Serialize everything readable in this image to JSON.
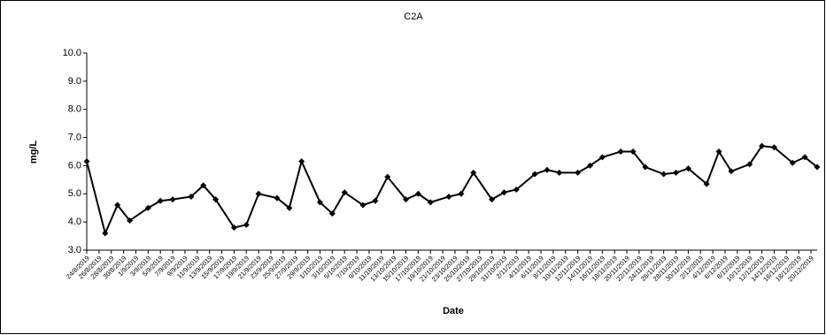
{
  "chart_data": {
    "type": "line",
    "title": "C2A",
    "xlabel": "Date",
    "ylabel": "mg/L",
    "x": [
      "2019-08-24",
      "2019-08-27",
      "2019-08-29",
      "2019-08-31",
      "2019-09-03",
      "2019-09-05",
      "2019-09-07",
      "2019-09-10",
      "2019-09-12",
      "2019-09-14",
      "2019-09-17",
      "2019-09-19",
      "2019-09-21",
      "2019-09-24",
      "2019-09-26",
      "2019-09-28",
      "2019-10-01",
      "2019-10-03",
      "2019-10-05",
      "2019-10-08",
      "2019-10-10",
      "2019-10-12",
      "2019-10-15",
      "2019-10-17",
      "2019-10-19",
      "2019-10-22",
      "2019-10-24",
      "2019-10-26",
      "2019-10-29",
      "2019-10-31",
      "2019-11-02",
      "2019-11-05",
      "2019-11-07",
      "2019-11-09",
      "2019-11-12",
      "2019-11-14",
      "2019-11-16",
      "2019-11-19",
      "2019-11-21",
      "2019-11-23",
      "2019-11-26",
      "2019-11-28",
      "2019-11-30",
      "2019-12-03",
      "2019-12-05",
      "2019-12-07",
      "2019-12-10",
      "2019-12-12",
      "2019-12-14",
      "2019-12-17",
      "2019-12-19",
      "2019-12-21"
    ],
    "series": [
      {
        "name": "C2A",
        "color": "#000000",
        "values": [
          6.15,
          3.6,
          4.6,
          4.05,
          4.5,
          4.75,
          4.8,
          4.9,
          5.3,
          4.8,
          3.8,
          3.9,
          5.0,
          4.85,
          4.5,
          6.15,
          4.7,
          4.3,
          5.05,
          4.6,
          4.75,
          5.6,
          4.8,
          5.0,
          4.7,
          4.9,
          5.0,
          5.75,
          4.8,
          5.05,
          5.15,
          5.7,
          5.85,
          5.75,
          5.75,
          6.0,
          6.3,
          6.5,
          6.5,
          5.95,
          5.7,
          5.75,
          5.9,
          5.35,
          6.5,
          5.8,
          6.05,
          6.7,
          6.65,
          6.1,
          6.3,
          5.95
        ]
      }
    ],
    "xlim": [
      "2019-08-24",
      "2019-12-21"
    ],
    "xticks": [
      {
        "value": "2019-08-24",
        "label": "24/8/2019"
      },
      {
        "value": "2019-08-26",
        "label": "26/8/2019"
      },
      {
        "value": "2019-08-28",
        "label": "28/8/2019"
      },
      {
        "value": "2019-08-30",
        "label": "30/8/2019"
      },
      {
        "value": "2019-09-01",
        "label": "1/9/2019"
      },
      {
        "value": "2019-09-03",
        "label": "3/9/2019"
      },
      {
        "value": "2019-09-05",
        "label": "5/9/2019"
      },
      {
        "value": "2019-09-07",
        "label": "7/9/2019"
      },
      {
        "value": "2019-09-09",
        "label": "9/9/2019"
      },
      {
        "value": "2019-09-11",
        "label": "11/9/2019"
      },
      {
        "value": "2019-09-13",
        "label": "13/9/2019"
      },
      {
        "value": "2019-09-15",
        "label": "15/9/2019"
      },
      {
        "value": "2019-09-17",
        "label": "17/9/2019"
      },
      {
        "value": "2019-09-19",
        "label": "19/9/2019"
      },
      {
        "value": "2019-09-21",
        "label": "21/9/2019"
      },
      {
        "value": "2019-09-23",
        "label": "23/9/2019"
      },
      {
        "value": "2019-09-25",
        "label": "25/9/2019"
      },
      {
        "value": "2019-09-27",
        "label": "27/9/2019"
      },
      {
        "value": "2019-09-29",
        "label": "29/9/2019"
      },
      {
        "value": "2019-10-01",
        "label": "1/10/2019"
      },
      {
        "value": "2019-10-03",
        "label": "3/10/2019"
      },
      {
        "value": "2019-10-05",
        "label": "5/10/2019"
      },
      {
        "value": "2019-10-07",
        "label": "7/10/2019"
      },
      {
        "value": "2019-10-09",
        "label": "9/10/2019"
      },
      {
        "value": "2019-10-11",
        "label": "11/10/2019"
      },
      {
        "value": "2019-10-13",
        "label": "13/10/2019"
      },
      {
        "value": "2019-10-15",
        "label": "15/10/2019"
      },
      {
        "value": "2019-10-17",
        "label": "17/10/2019"
      },
      {
        "value": "2019-10-19",
        "label": "19/10/2019"
      },
      {
        "value": "2019-10-21",
        "label": "21/10/2019"
      },
      {
        "value": "2019-10-23",
        "label": "23/10/2019"
      },
      {
        "value": "2019-10-25",
        "label": "25/10/2019"
      },
      {
        "value": "2019-10-27",
        "label": "27/10/2019"
      },
      {
        "value": "2019-10-29",
        "label": "29/10/2019"
      },
      {
        "value": "2019-10-31",
        "label": "31/10/2019"
      },
      {
        "value": "2019-11-02",
        "label": "2/11/2019"
      },
      {
        "value": "2019-11-04",
        "label": "4/11/2019"
      },
      {
        "value": "2019-11-06",
        "label": "6/11/2019"
      },
      {
        "value": "2019-11-08",
        "label": "8/11/2019"
      },
      {
        "value": "2019-11-10",
        "label": "10/11/2019"
      },
      {
        "value": "2019-11-12",
        "label": "12/11/2019"
      },
      {
        "value": "2019-11-14",
        "label": "14/11/2019"
      },
      {
        "value": "2019-11-16",
        "label": "16/11/2019"
      },
      {
        "value": "2019-11-18",
        "label": "18/11/2019"
      },
      {
        "value": "2019-11-20",
        "label": "20/11/2019"
      },
      {
        "value": "2019-11-22",
        "label": "22/11/2019"
      },
      {
        "value": "2019-11-24",
        "label": "24/11/2019"
      },
      {
        "value": "2019-11-26",
        "label": "26/11/2019"
      },
      {
        "value": "2019-11-28",
        "label": "28/11/2019"
      },
      {
        "value": "2019-11-30",
        "label": "30/11/2019"
      },
      {
        "value": "2019-12-02",
        "label": "2/12/2019"
      },
      {
        "value": "2019-12-04",
        "label": "4/12/2019"
      },
      {
        "value": "2019-12-06",
        "label": "6/12/2019"
      },
      {
        "value": "2019-12-08",
        "label": "8/12/2019"
      },
      {
        "value": "2019-12-10",
        "label": "10/12/2019"
      },
      {
        "value": "2019-12-12",
        "label": "12/12/2019"
      },
      {
        "value": "2019-12-14",
        "label": "14/12/2019"
      },
      {
        "value": "2019-12-16",
        "label": "16/12/2019"
      },
      {
        "value": "2019-12-18",
        "label": "18/12/2019"
      },
      {
        "value": "2019-12-20",
        "label": "20/12/2019"
      }
    ],
    "ylim": [
      3,
      10
    ],
    "yticks": [
      {
        "value": 3,
        "label": "3.0"
      },
      {
        "value": 4,
        "label": "4.0"
      },
      {
        "value": 5,
        "label": "5.0"
      },
      {
        "value": 6,
        "label": "6.0"
      },
      {
        "value": 7,
        "label": "7.0"
      },
      {
        "value": 8,
        "label": "8.0"
      },
      {
        "value": 9,
        "label": "9.0"
      },
      {
        "value": 10,
        "label": "10.0"
      }
    ],
    "grid": false,
    "marker": "diamond"
  }
}
